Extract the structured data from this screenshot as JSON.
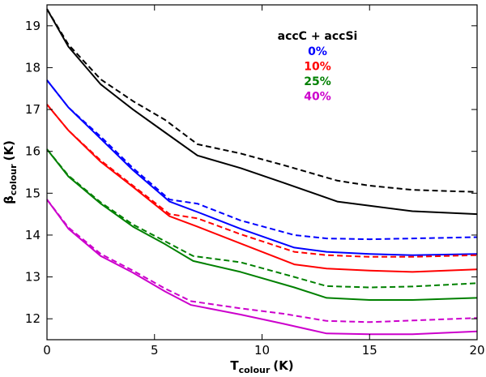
{
  "chart_data": {
    "type": "line",
    "title": "",
    "xlabel": {
      "main": "T",
      "sub": "colour",
      "unit": "(K)"
    },
    "ylabel": {
      "main": "β",
      "sub": "colour",
      "unit": "(K)"
    },
    "xlim": [
      0,
      20
    ],
    "ylim": [
      11.5,
      19.5
    ],
    "xticks": [
      0,
      5,
      10,
      15,
      20
    ],
    "yticks": [
      12,
      13,
      14,
      15,
      16,
      17,
      18,
      19
    ],
    "grid": false,
    "legend": {
      "title": "accC + accSi",
      "position": "top-right",
      "entries": [
        {
          "label": "0%",
          "color": "#0000ff"
        },
        {
          "label": "10%",
          "color": "#ff0000"
        },
        {
          "label": "25%",
          "color": "#008000"
        },
        {
          "label": "40%",
          "color": "#cc00cc"
        }
      ]
    },
    "series": [
      {
        "name": "reference solid",
        "color": "#000000",
        "style": "solid",
        "x": [
          0,
          1,
          2.5,
          4,
          5.5,
          7,
          9,
          11,
          13.5,
          15,
          17,
          20
        ],
        "y": [
          19.4,
          18.5,
          17.6,
          17.0,
          16.45,
          15.9,
          15.6,
          15.25,
          14.8,
          14.7,
          14.57,
          14.5
        ]
      },
      {
        "name": "reference dashed",
        "color": "#000000",
        "style": "dashed",
        "x": [
          0,
          1,
          2.5,
          4,
          5.5,
          7,
          9,
          11,
          13.5,
          15,
          17,
          20
        ],
        "y": [
          19.4,
          18.55,
          17.72,
          17.2,
          16.75,
          16.17,
          15.95,
          15.67,
          15.3,
          15.18,
          15.08,
          15.03
        ]
      },
      {
        "name": "0% solid",
        "color": "#0000ff",
        "style": "solid",
        "x": [
          0,
          1,
          2.5,
          4,
          5.7,
          7,
          9,
          11.5,
          13,
          15,
          17,
          20
        ],
        "y": [
          17.7,
          17.05,
          16.3,
          15.55,
          14.8,
          14.55,
          14.15,
          13.7,
          13.6,
          13.55,
          13.52,
          13.55
        ]
      },
      {
        "name": "0% dashed",
        "color": "#0000ff",
        "style": "dashed",
        "x": [
          0,
          1,
          2.5,
          4,
          5.7,
          7,
          9,
          11.5,
          13,
          15,
          17,
          20
        ],
        "y": [
          17.7,
          17.05,
          16.35,
          15.6,
          14.85,
          14.75,
          14.35,
          14.0,
          13.92,
          13.9,
          13.92,
          13.95
        ]
      },
      {
        "name": "10% solid",
        "color": "#ff0000",
        "style": "solid",
        "x": [
          0,
          1,
          2.5,
          4,
          5.7,
          7,
          9,
          11.5,
          13,
          15,
          17,
          20
        ],
        "y": [
          17.12,
          16.5,
          15.75,
          15.15,
          14.45,
          14.2,
          13.8,
          13.3,
          13.2,
          13.15,
          13.12,
          13.18
        ]
      },
      {
        "name": "10% dashed",
        "color": "#ff0000",
        "style": "dashed",
        "x": [
          0,
          1,
          2.5,
          4,
          5.7,
          7,
          9,
          11.5,
          13,
          15,
          17,
          20
        ],
        "y": [
          17.12,
          16.5,
          15.78,
          15.18,
          14.5,
          14.4,
          14.02,
          13.6,
          13.52,
          13.48,
          13.48,
          13.52
        ]
      },
      {
        "name": "25% solid",
        "color": "#008000",
        "style": "solid",
        "x": [
          0,
          1,
          2.5,
          4,
          5.5,
          6.8,
          9,
          11.5,
          13,
          15,
          17,
          20
        ],
        "y": [
          16.05,
          15.4,
          14.75,
          14.2,
          13.78,
          13.38,
          13.12,
          12.75,
          12.5,
          12.45,
          12.45,
          12.5
        ]
      },
      {
        "name": "25% dashed",
        "color": "#008000",
        "style": "dashed",
        "x": [
          0,
          1,
          2.5,
          4,
          5.5,
          6.8,
          9,
          11.5,
          13,
          15,
          17,
          20
        ],
        "y": [
          16.05,
          15.42,
          14.78,
          14.25,
          13.85,
          13.5,
          13.35,
          13.0,
          12.78,
          12.75,
          12.77,
          12.85
        ]
      },
      {
        "name": "40% solid",
        "color": "#cc00cc",
        "style": "solid",
        "x": [
          0,
          1,
          2.5,
          4,
          5.5,
          6.7,
          9,
          11,
          13,
          15,
          17,
          20
        ],
        "y": [
          14.85,
          14.15,
          13.5,
          13.1,
          12.65,
          12.33,
          12.1,
          11.88,
          11.65,
          11.63,
          11.63,
          11.7
        ]
      },
      {
        "name": "40% dashed",
        "color": "#cc00cc",
        "style": "dashed",
        "x": [
          0,
          1,
          2.5,
          4,
          5.5,
          6.7,
          9,
          11,
          13,
          15,
          17,
          20
        ],
        "y": [
          14.85,
          14.18,
          13.55,
          13.15,
          12.72,
          12.42,
          12.25,
          12.12,
          11.95,
          11.92,
          11.96,
          12.02
        ]
      }
    ]
  }
}
